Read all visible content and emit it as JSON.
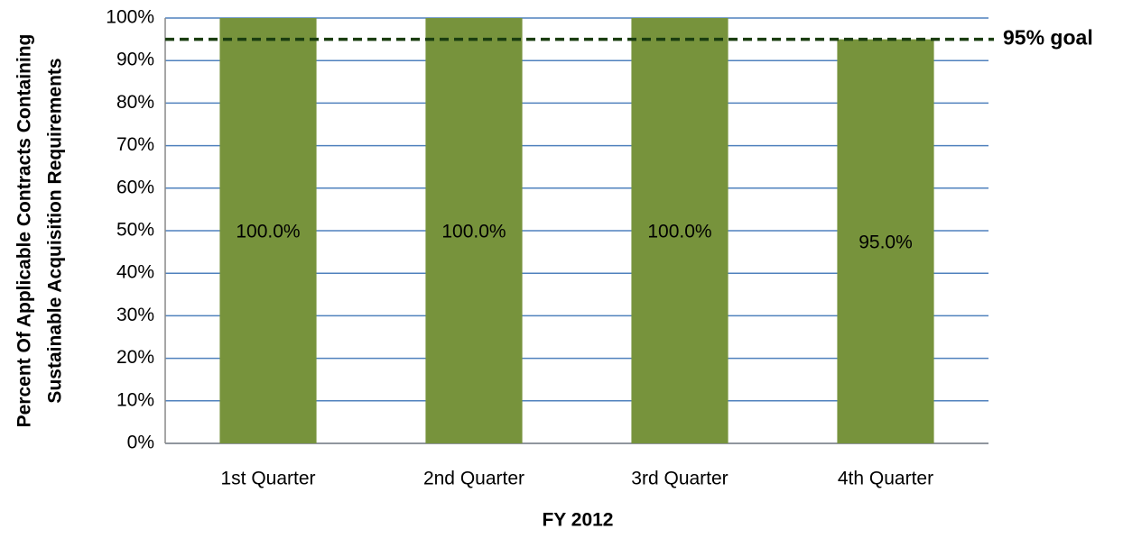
{
  "chart_data": {
    "type": "bar",
    "xlabel": "FY 2012",
    "ylabel": [
      "Percent Of Applicable Contracts Containing",
      "Sustainable Acquisition Requirements"
    ],
    "categories": [
      "1st Quarter",
      "2nd Quarter",
      "3rd Quarter",
      "4th Quarter"
    ],
    "values": [
      100,
      100,
      100,
      95
    ],
    "value_labels": [
      "100.0%",
      "100.0%",
      "100.0%",
      "95.0%"
    ],
    "color": "#77933c",
    "ylim": [
      0,
      100
    ],
    "yticks": [
      {
        "value": 0,
        "label": "0%"
      },
      {
        "value": 10,
        "label": "10%"
      },
      {
        "value": 20,
        "label": "20%"
      },
      {
        "value": 30,
        "label": "30%"
      },
      {
        "value": 40,
        "label": "40%"
      },
      {
        "value": 50,
        "label": "50%"
      },
      {
        "value": 60,
        "label": "60%"
      },
      {
        "value": 70,
        "label": "70%"
      },
      {
        "value": 80,
        "label": "80%"
      },
      {
        "value": 90,
        "label": "90%"
      },
      {
        "value": 100,
        "label": "100%"
      }
    ],
    "grid": true,
    "goal": {
      "value": 95,
      "label": "95% goal",
      "color": "#1a3d10"
    }
  }
}
